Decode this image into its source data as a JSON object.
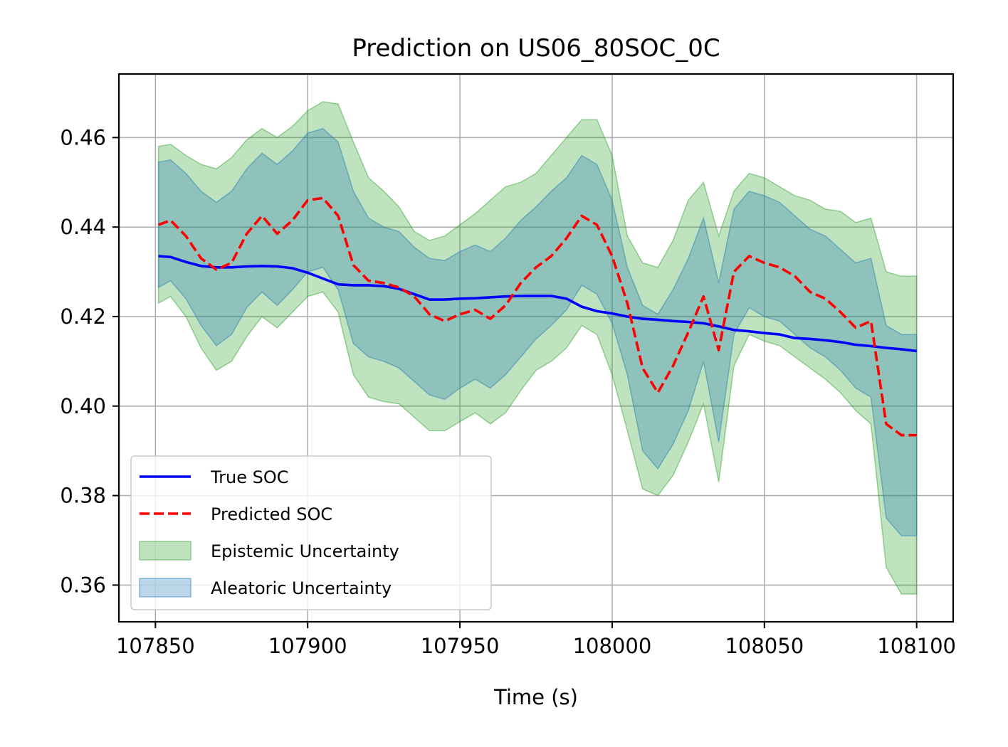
{
  "chart_data": {
    "type": "line",
    "title": "Prediction on US06_80SOC_0C",
    "xlabel": "Time (s)",
    "ylabel": "",
    "xlim": [
      107838,
      108112
    ],
    "ylim": [
      0.3518,
      0.4742
    ],
    "xticks": [
      107850,
      107900,
      107950,
      108000,
      108050,
      108100
    ],
    "yticks": [
      0.36,
      0.38,
      0.4,
      0.42,
      0.44,
      0.46
    ],
    "ytick_labels": [
      "0.36",
      "0.38",
      "0.40",
      "0.42",
      "0.44",
      "0.46"
    ],
    "grid": true,
    "legend_position": "lower-left",
    "x": [
      107851,
      107855,
      107860,
      107865,
      107870,
      107875,
      107880,
      107885,
      107890,
      107895,
      107900,
      107905,
      107910,
      107915,
      107920,
      107925,
      107930,
      107935,
      107940,
      107945,
      107950,
      107955,
      107960,
      107965,
      107970,
      107975,
      107980,
      107985,
      107990,
      107995,
      108000,
      108005,
      108010,
      108015,
      108020,
      108025,
      108030,
      108035,
      108040,
      108045,
      108050,
      108055,
      108060,
      108065,
      108070,
      108075,
      108080,
      108085,
      108090,
      108095,
      108100
    ],
    "series": [
      {
        "name": "True SOC",
        "style": "solid",
        "color": "#0000ff",
        "values": [
          0.4335,
          0.4333,
          0.4322,
          0.4313,
          0.431,
          0.431,
          0.4312,
          0.4313,
          0.4312,
          0.4308,
          0.4298,
          0.4285,
          0.4272,
          0.427,
          0.427,
          0.4268,
          0.4262,
          0.425,
          0.4238,
          0.4238,
          0.424,
          0.4241,
          0.4243,
          0.4245,
          0.4246,
          0.4246,
          0.4246,
          0.424,
          0.4222,
          0.4212,
          0.4207,
          0.42,
          0.4195,
          0.4193,
          0.419,
          0.4188,
          0.4185,
          0.4178,
          0.417,
          0.4167,
          0.4163,
          0.416,
          0.4152,
          0.415,
          0.4147,
          0.4143,
          0.4137,
          0.4134,
          0.413,
          0.4127,
          0.4123
        ]
      },
      {
        "name": "Predicted SOC",
        "style": "dashed",
        "color": "#ff0000",
        "values": [
          0.4405,
          0.4415,
          0.438,
          0.433,
          0.4305,
          0.432,
          0.4385,
          0.4425,
          0.4385,
          0.4415,
          0.446,
          0.4465,
          0.4425,
          0.4315,
          0.428,
          0.4275,
          0.4265,
          0.4245,
          0.4205,
          0.419,
          0.4205,
          0.4215,
          0.4195,
          0.4225,
          0.4275,
          0.431,
          0.4335,
          0.4375,
          0.4425,
          0.4405,
          0.4335,
          0.423,
          0.4085,
          0.403,
          0.409,
          0.4165,
          0.4245,
          0.4125,
          0.43,
          0.4335,
          0.432,
          0.431,
          0.429,
          0.4255,
          0.424,
          0.421,
          0.4175,
          0.419,
          0.396,
          0.3935,
          0.3935
        ]
      }
    ],
    "bands": [
      {
        "name": "Epistemic Uncertainty",
        "color": "#2ca02c",
        "opacity": 0.3,
        "upper": [
          0.458,
          0.4585,
          0.456,
          0.454,
          0.453,
          0.4555,
          0.4595,
          0.462,
          0.46,
          0.4625,
          0.466,
          0.468,
          0.4675,
          0.459,
          0.451,
          0.448,
          0.4445,
          0.439,
          0.437,
          0.438,
          0.4405,
          0.443,
          0.446,
          0.449,
          0.45,
          0.452,
          0.456,
          0.46,
          0.464,
          0.464,
          0.456,
          0.438,
          0.432,
          0.431,
          0.437,
          0.446,
          0.45,
          0.438,
          0.448,
          0.452,
          0.451,
          0.449,
          0.447,
          0.446,
          0.444,
          0.4435,
          0.441,
          0.442,
          0.43,
          0.429,
          0.429
        ],
        "lower": [
          0.423,
          0.4245,
          0.42,
          0.413,
          0.408,
          0.41,
          0.4155,
          0.42,
          0.4175,
          0.421,
          0.4245,
          0.4255,
          0.421,
          0.407,
          0.402,
          0.401,
          0.4005,
          0.3975,
          0.3945,
          0.3945,
          0.3965,
          0.3985,
          0.396,
          0.3985,
          0.4035,
          0.408,
          0.41,
          0.413,
          0.418,
          0.416,
          0.407,
          0.3945,
          0.3815,
          0.38,
          0.3845,
          0.392,
          0.4005,
          0.383,
          0.409,
          0.416,
          0.4145,
          0.4135,
          0.411,
          0.4085,
          0.406,
          0.403,
          0.399,
          0.396,
          0.364,
          0.358,
          0.358
        ]
      },
      {
        "name": "Aleatoric Uncertainty",
        "color": "#1f77b4",
        "opacity": 0.3,
        "upper": [
          0.4545,
          0.455,
          0.452,
          0.448,
          0.4455,
          0.448,
          0.453,
          0.4565,
          0.454,
          0.457,
          0.461,
          0.462,
          0.459,
          0.448,
          0.442,
          0.44,
          0.439,
          0.4355,
          0.433,
          0.4325,
          0.4345,
          0.436,
          0.4345,
          0.4375,
          0.4415,
          0.4445,
          0.448,
          0.451,
          0.456,
          0.454,
          0.446,
          0.431,
          0.4225,
          0.4205,
          0.426,
          0.433,
          0.442,
          0.4275,
          0.444,
          0.448,
          0.447,
          0.4455,
          0.4425,
          0.4395,
          0.438,
          0.435,
          0.432,
          0.433,
          0.418,
          0.416,
          0.416
        ],
        "lower": [
          0.4265,
          0.428,
          0.424,
          0.418,
          0.4135,
          0.416,
          0.422,
          0.4255,
          0.4225,
          0.426,
          0.43,
          0.431,
          0.426,
          0.414,
          0.411,
          0.41,
          0.4085,
          0.4055,
          0.4025,
          0.4015,
          0.404,
          0.406,
          0.404,
          0.407,
          0.411,
          0.415,
          0.418,
          0.4215,
          0.427,
          0.425,
          0.4185,
          0.407,
          0.39,
          0.386,
          0.3915,
          0.399,
          0.41,
          0.392,
          0.416,
          0.422,
          0.42,
          0.419,
          0.416,
          0.413,
          0.411,
          0.408,
          0.404,
          0.402,
          0.375,
          0.371,
          0.371
        ]
      }
    ],
    "legend": [
      {
        "label": "True SOC",
        "kind": "line",
        "style": "solid",
        "color": "#0000ff"
      },
      {
        "label": "Predicted SOC",
        "kind": "line",
        "style": "dashed",
        "color": "#ff0000"
      },
      {
        "label": "Epistemic Uncertainty",
        "kind": "patch",
        "color": "#2ca02c"
      },
      {
        "label": "Aleatoric Uncertainty",
        "kind": "patch",
        "color": "#1f77b4"
      }
    ]
  }
}
